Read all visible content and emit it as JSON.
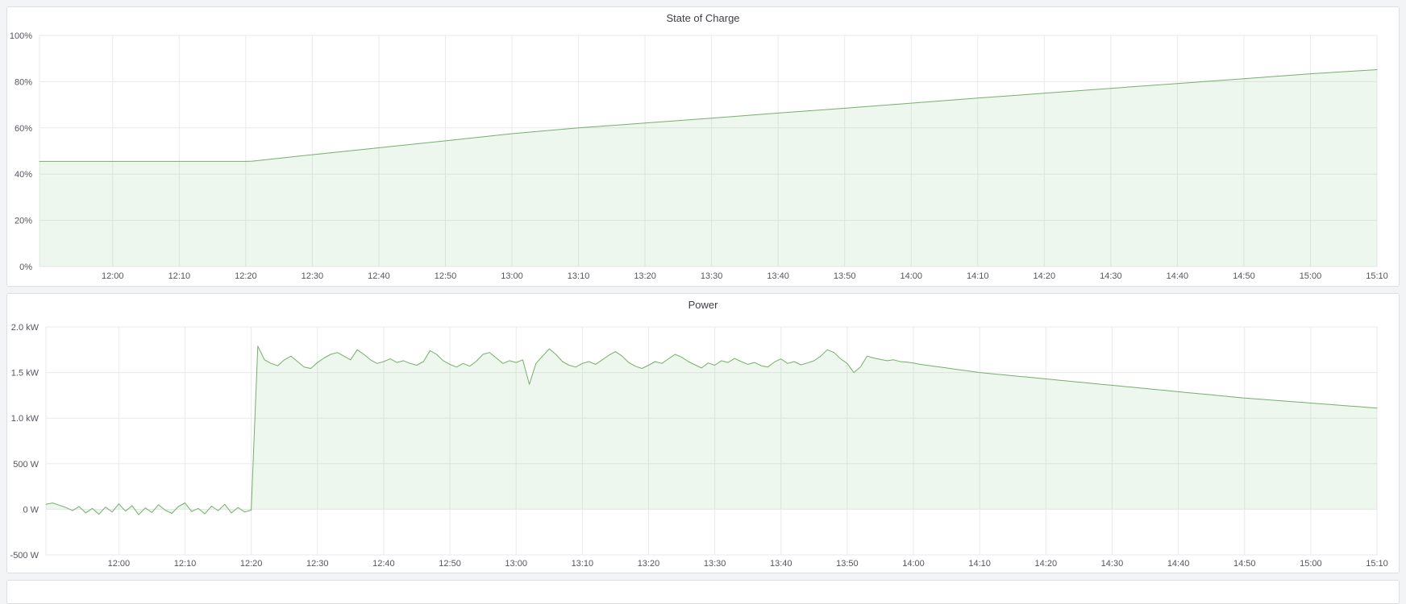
{
  "page": {
    "background_color": "#f2f4f5",
    "panel_background": "#ffffff",
    "panel_border_color": "#dde0e1",
    "grid_color": "#e9eaec",
    "tick_text_color": "#54565e",
    "title_text_color": "#3d3f45"
  },
  "chart_data": [
    {
      "type": "area",
      "title": "State of Charge",
      "legend": "off",
      "grid": "on",
      "line_color": "#74b06a",
      "fill_color": "#73bf69",
      "fill_opacity": 0.12,
      "x_axis": {
        "min": "11:49",
        "max": "15:10",
        "ticks": [
          "12:00",
          "12:10",
          "12:20",
          "12:30",
          "12:40",
          "12:50",
          "13:00",
          "13:10",
          "13:20",
          "13:30",
          "13:40",
          "13:50",
          "14:00",
          "14:10",
          "14:20",
          "14:30",
          "14:40",
          "14:50",
          "15:00",
          "15:10"
        ]
      },
      "y_axis": {
        "min": 0,
        "max": 100,
        "unit": "percent",
        "ticks": [
          {
            "value": 0,
            "label": "0%"
          },
          {
            "value": 20,
            "label": "20%"
          },
          {
            "value": 40,
            "label": "40%"
          },
          {
            "value": 60,
            "label": "60%"
          },
          {
            "value": 80,
            "label": "80%"
          },
          {
            "value": 100,
            "label": "100%"
          }
        ]
      },
      "series": [
        {
          "name": "State of Charge",
          "points": [
            [
              "11:49",
              45.5
            ],
            [
              "12:00",
              45.5
            ],
            [
              "12:10",
              45.5
            ],
            [
              "12:20",
              45.5
            ],
            [
              "12:21",
              45.6
            ],
            [
              "12:30",
              48.4
            ],
            [
              "12:40",
              51.4
            ],
            [
              "12:50",
              54.4
            ],
            [
              "13:00",
              57.5
            ],
            [
              "13:10",
              60.0
            ],
            [
              "13:20",
              62.1
            ],
            [
              "13:30",
              64.2
            ],
            [
              "13:40",
              66.4
            ],
            [
              "13:50",
              68.5
            ],
            [
              "14:00",
              70.7
            ],
            [
              "14:10",
              72.9
            ],
            [
              "14:20",
              75.0
            ],
            [
              "14:30",
              77.1
            ],
            [
              "14:40",
              79.2
            ],
            [
              "14:50",
              81.3
            ],
            [
              "15:00",
              83.4
            ],
            [
              "15:10",
              85.2
            ]
          ]
        }
      ]
    },
    {
      "type": "area",
      "title": "Power",
      "legend": "off",
      "grid": "on",
      "line_color": "#74b06a",
      "fill_color": "#73bf69",
      "fill_opacity": 0.12,
      "x_axis": {
        "min": "11:49",
        "max": "15:10",
        "ticks": [
          "12:00",
          "12:10",
          "12:20",
          "12:30",
          "12:40",
          "12:50",
          "13:00",
          "13:10",
          "13:20",
          "13:30",
          "13:40",
          "13:50",
          "14:00",
          "14:10",
          "14:20",
          "14:30",
          "14:40",
          "14:50",
          "15:00",
          "15:10"
        ]
      },
      "y_axis": {
        "min": -500,
        "max": 2000,
        "unit": "watt",
        "ticks": [
          {
            "value": -500,
            "label": "-500 W"
          },
          {
            "value": 0,
            "label": "0 W"
          },
          {
            "value": 500,
            "label": "500 W"
          },
          {
            "value": 1000,
            "label": "1.0 kW"
          },
          {
            "value": 1500,
            "label": "1.5 kW"
          },
          {
            "value": 2000,
            "label": "2.0 kW"
          }
        ]
      },
      "series": [
        {
          "name": "Power",
          "values_start": "11:49",
          "values_step_min": 1,
          "values": [
            55,
            70,
            45,
            20,
            -15,
            30,
            -40,
            10,
            -55,
            25,
            -30,
            60,
            -20,
            40,
            -60,
            15,
            -35,
            50,
            -10,
            -45,
            30,
            70,
            -25,
            10,
            -50,
            35,
            -15,
            55,
            -40,
            20,
            -30,
            -10,
            1790,
            1640,
            1600,
            1575,
            1640,
            1680,
            1620,
            1560,
            1545,
            1610,
            1660,
            1700,
            1720,
            1680,
            1640,
            1750,
            1700,
            1640,
            1600,
            1620,
            1650,
            1610,
            1630,
            1600,
            1580,
            1620,
            1740,
            1700,
            1630,
            1590,
            1560,
            1600,
            1570,
            1625,
            1700,
            1720,
            1660,
            1600,
            1630,
            1610,
            1640,
            1370,
            1600,
            1680,
            1760,
            1700,
            1620,
            1580,
            1560,
            1600,
            1620,
            1590,
            1640,
            1690,
            1730,
            1680,
            1610,
            1570,
            1545,
            1580,
            1620,
            1600,
            1650,
            1700,
            1670,
            1620,
            1585,
            1550,
            1605,
            1580,
            1630,
            1610,
            1655,
            1620,
            1590,
            1610,
            1575,
            1560,
            1615,
            1650,
            1600,
            1620,
            1585,
            1605,
            1630,
            1680,
            1750,
            1720,
            1650,
            1600,
            1500,
            1560,
            1680,
            1660,
            1645,
            1630,
            1640,
            1620,
            1615,
            1605,
            1590,
            1580,
            1570,
            1560,
            1550,
            1540,
            1530,
            1520,
            1510,
            1500,
            1493,
            1486,
            1479,
            1472,
            1465,
            1458,
            1451,
            1444,
            1437,
            1430,
            1423,
            1416,
            1409,
            1402,
            1395,
            1388,
            1381,
            1374,
            1367,
            1360,
            1353,
            1346,
            1339,
            1332,
            1325,
            1318,
            1311,
            1304,
            1297,
            1290,
            1283,
            1276,
            1269,
            1262,
            1255,
            1248,
            1241,
            1234,
            1227,
            1220,
            1215,
            1209,
            1204,
            1198,
            1193,
            1187,
            1182,
            1176,
            1171,
            1165,
            1160,
            1154,
            1149,
            1143,
            1138,
            1132,
            1127,
            1121,
            1116,
            1110
          ]
        }
      ]
    }
  ]
}
